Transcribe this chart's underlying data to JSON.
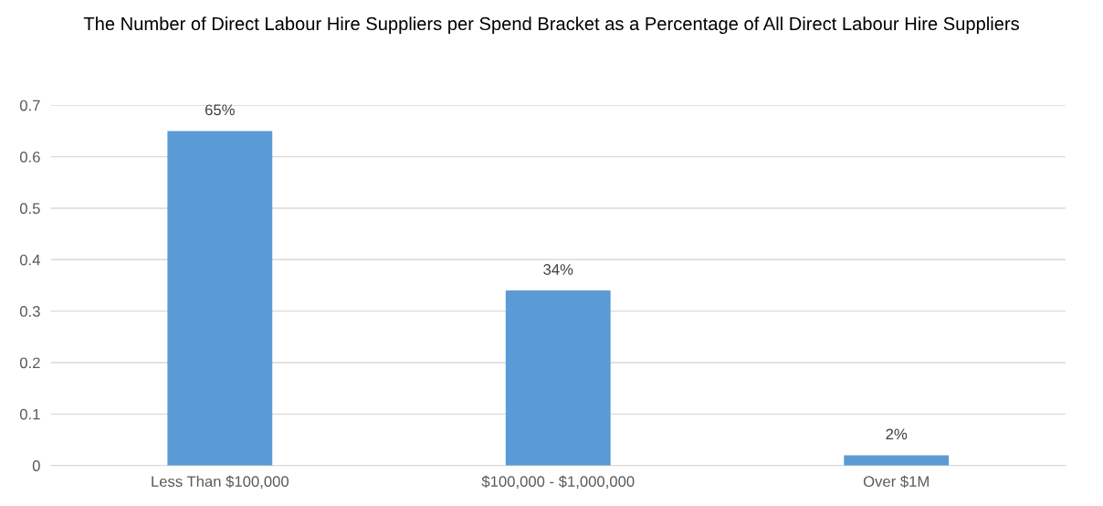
{
  "chart_data": {
    "type": "bar",
    "title": "The Number of Direct Labour Hire Suppliers per Spend Bracket as a Percentage of All Direct Labour Hire Suppliers",
    "categories": [
      "Less Than $100,000",
      "$100,000 - $1,000,000",
      "Over $1M"
    ],
    "values": [
      0.65,
      0.34,
      0.02
    ],
    "value_labels": [
      "65%",
      "34%",
      "2%"
    ],
    "color": "#5b9bd5",
    "ylim": [
      0,
      0.7
    ],
    "yticks": [
      0,
      0.1,
      0.2,
      0.3,
      0.4,
      0.5,
      0.6,
      0.7
    ],
    "grid": "y",
    "legend": false
  }
}
